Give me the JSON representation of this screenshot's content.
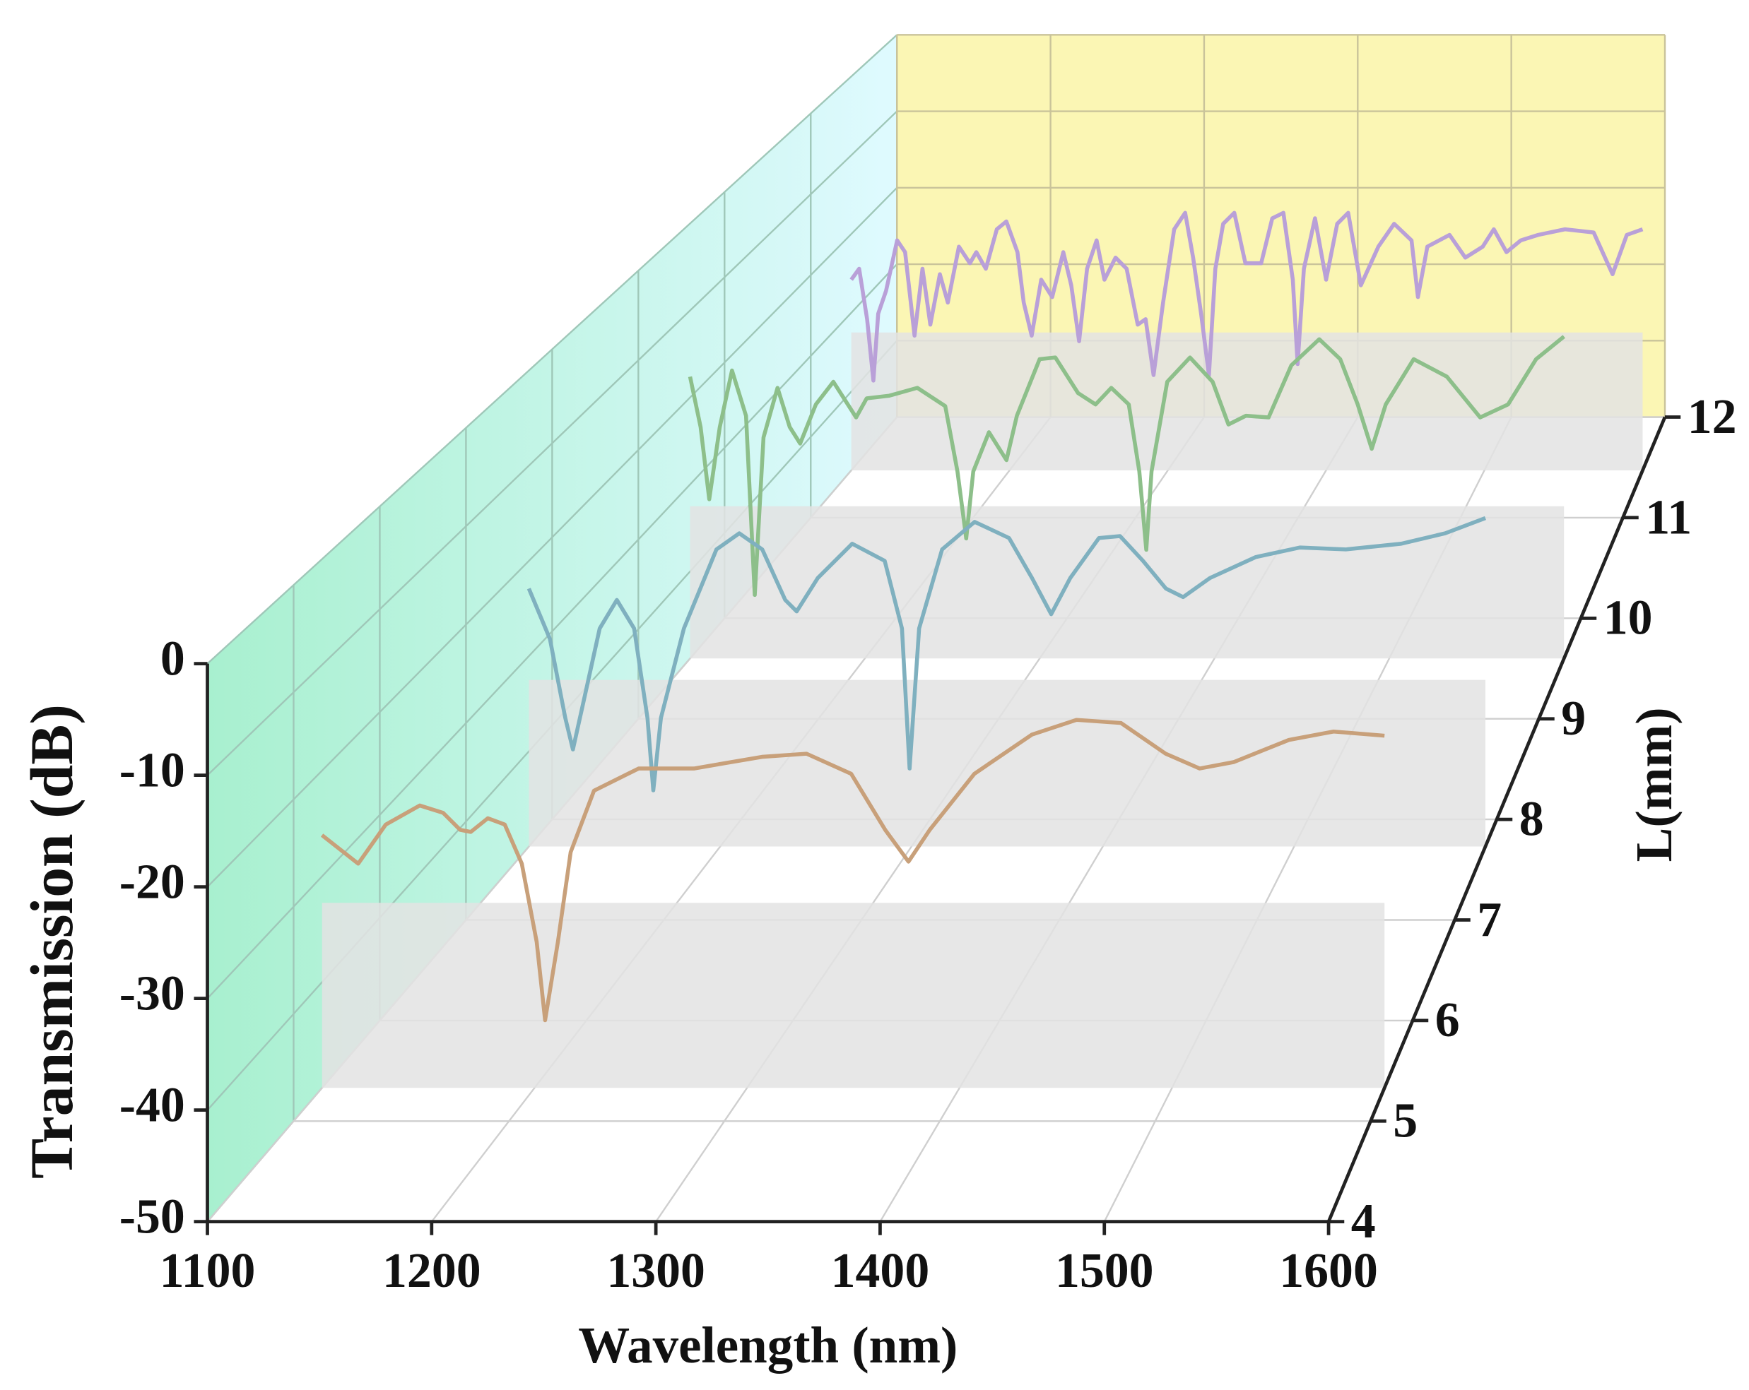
{
  "chart_data": {
    "type": "waterfall3d",
    "x_label": "Wavelength (nm)",
    "y_label": "Transmission (dB)",
    "z_label": "L(mm)",
    "xlim": [
      1100,
      1600
    ],
    "xticks": [
      1100,
      1200,
      1300,
      1400,
      1500,
      1600
    ],
    "ylim": [
      -50,
      0
    ],
    "yticks": [
      0,
      -10,
      -20,
      -30,
      -40,
      -50
    ],
    "zlim": [
      4,
      12
    ],
    "zticks": [
      4,
      5,
      6,
      7,
      8,
      9,
      10,
      11,
      12
    ],
    "grid": true,
    "series": [
      {
        "z": 5.33,
        "color": "#c8a07a",
        "x": [
          1100,
          1117,
          1130,
          1146,
          1157,
          1165,
          1170,
          1178,
          1186,
          1194,
          1201,
          1205,
          1211,
          1217,
          1228,
          1249,
          1275,
          1307,
          1328,
          1349,
          1365,
          1376,
          1386,
          1407,
          1434,
          1455,
          1476,
          1497,
          1513,
          1529,
          1555,
          1576,
          1600
        ],
        "values": [
          -26.1,
          -28.8,
          -25.1,
          -23.3,
          -24.0,
          -25.6,
          -25.8,
          -24.5,
          -25.1,
          -28.8,
          -36.2,
          -43.6,
          -36.2,
          -27.7,
          -21.9,
          -19.8,
          -19.8,
          -18.7,
          -18.4,
          -20.3,
          -25.6,
          -28.6,
          -25.6,
          -20.3,
          -16.6,
          -15.2,
          -15.5,
          -18.4,
          -19.8,
          -19.2,
          -17.1,
          -16.3,
          -16.7
        ]
      },
      {
        "z": 7.73,
        "color": "#7fb0bf",
        "x": [
          1100,
          1111,
          1119,
          1123,
          1128,
          1137,
          1146,
          1155,
          1162,
          1165,
          1169,
          1181,
          1198,
          1210,
          1222,
          1234,
          1240,
          1251,
          1269,
          1286,
          1295,
          1299,
          1304,
          1316,
          1333,
          1351,
          1363,
          1373,
          1383,
          1398,
          1409,
          1421,
          1433,
          1442,
          1456,
          1480,
          1503,
          1527,
          1556,
          1579,
          1600
        ],
        "values": [
          -22.9,
          -28.2,
          -36.5,
          -39.8,
          -35.3,
          -27.1,
          -24.1,
          -27.1,
          -36.5,
          -44.1,
          -36.5,
          -27.1,
          -18.8,
          -17.1,
          -18.8,
          -24.1,
          -25.3,
          -21.8,
          -18.2,
          -20.0,
          -27.1,
          -41.8,
          -27.1,
          -18.8,
          -15.9,
          -17.6,
          -21.8,
          -25.6,
          -21.8,
          -17.6,
          -17.4,
          -20.0,
          -22.9,
          -23.8,
          -21.8,
          -19.6,
          -18.6,
          -18.8,
          -18.2,
          -17.1,
          -15.5
        ]
      },
      {
        "z": 9.6,
        "color": "#8dbf8a",
        "x": [
          1100,
          1106,
          1111,
          1117,
          1124,
          1132,
          1137,
          1142,
          1150,
          1157,
          1163,
          1172,
          1182,
          1195,
          1201,
          1214,
          1230,
          1246,
          1253,
          1258,
          1262,
          1271,
          1281,
          1287,
          1300,
          1309,
          1322,
          1332,
          1341,
          1351,
          1357,
          1361,
          1364,
          1373,
          1386,
          1399,
          1408,
          1418,
          1431,
          1444,
          1460,
          1472,
          1482,
          1490,
          1498,
          1514,
          1533,
          1552,
          1568,
          1584,
          1600
        ],
        "values": [
          -17.6,
          -23.4,
          -31.7,
          -23.4,
          -16.9,
          -22.1,
          -42.7,
          -24.6,
          -18.9,
          -23.4,
          -25.3,
          -20.8,
          -18.2,
          -22.3,
          -20.1,
          -19.8,
          -18.9,
          -21.0,
          -28.5,
          -36.2,
          -28.5,
          -24.0,
          -27.2,
          -22.1,
          -15.6,
          -15.4,
          -19.5,
          -20.8,
          -18.9,
          -20.8,
          -28.5,
          -37.5,
          -28.5,
          -18.2,
          -15.4,
          -18.2,
          -23.1,
          -22.1,
          -22.3,
          -16.3,
          -13.3,
          -15.6,
          -20.8,
          -25.9,
          -20.8,
          -15.6,
          -17.6,
          -22.3,
          -20.8,
          -15.6,
          -13.0
        ]
      },
      {
        "z": 11.47,
        "color": "#b9a0d8",
        "x": [
          1100,
          1105,
          1110,
          1114,
          1117,
          1122,
          1129,
          1134,
          1140,
          1145,
          1150,
          1156,
          1161,
          1168,
          1175,
          1179,
          1185,
          1192,
          1198,
          1205,
          1209,
          1214,
          1220,
          1227,
          1234,
          1239,
          1244,
          1249,
          1255,
          1260,
          1267,
          1274,
          1281,
          1286,
          1291,
          1297,
          1304,
          1311,
          1316,
          1321,
          1326,
          1330,
          1335,
          1342,
          1349,
          1359,
          1366,
          1373,
          1379,
          1382,
          1386,
          1393,
          1400,
          1407,
          1414,
          1422,
          1433,
          1443,
          1454,
          1458,
          1464,
          1478,
          1488,
          1499,
          1506,
          1514,
          1523,
          1534,
          1551,
          1569,
          1581,
          1590,
          1600
        ],
        "values": [
          -25.8,
          -24.4,
          -30.8,
          -38.6,
          -30.1,
          -27.2,
          -20.8,
          -22.3,
          -32.9,
          -24.4,
          -31.5,
          -25.1,
          -28.7,
          -21.6,
          -23.7,
          -22.3,
          -24.4,
          -19.4,
          -18.4,
          -22.3,
          -28.7,
          -32.9,
          -25.8,
          -28.0,
          -22.3,
          -26.5,
          -33.6,
          -24.4,
          -20.8,
          -25.8,
          -23.0,
          -24.4,
          -31.5,
          -30.8,
          -37.9,
          -28.7,
          -19.4,
          -17.3,
          -23.0,
          -30.1,
          -37.9,
          -24.4,
          -18.7,
          -17.3,
          -23.7,
          -23.7,
          -18.0,
          -17.3,
          -25.8,
          -36.5,
          -24.4,
          -18.0,
          -25.8,
          -18.7,
          -17.3,
          -26.5,
          -21.6,
          -18.7,
          -20.8,
          -28.0,
          -21.6,
          -20.1,
          -23.0,
          -21.6,
          -19.4,
          -22.3,
          -20.8,
          -20.1,
          -19.4,
          -19.8,
          -25.1,
          -20.1,
          -19.4
        ]
      }
    ]
  }
}
